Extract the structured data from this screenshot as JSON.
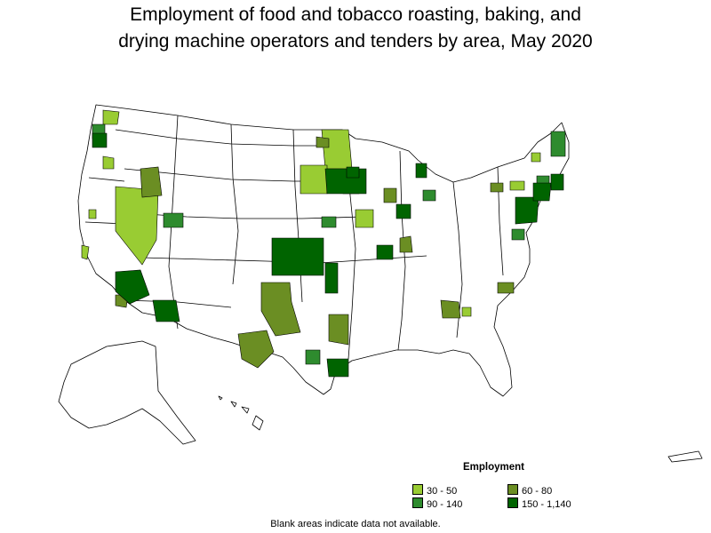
{
  "title_line1": "Employment of food and tobacco roasting, baking, and",
  "title_line2": "drying machine operators and tenders by area, May 2020",
  "legend": {
    "title": "Employment",
    "items": [
      {
        "label": "30 - 50",
        "color": "#99cc33"
      },
      {
        "label": "60 - 80",
        "color": "#6b8e23"
      },
      {
        "label": "90 - 140",
        "color": "#2e8b2e"
      },
      {
        "label": "150 - 1,140",
        "color": "#006400"
      }
    ]
  },
  "footnote": "Blank areas indicate data not available.",
  "colors": {
    "border": "#000000",
    "blank": "#ffffff"
  }
}
